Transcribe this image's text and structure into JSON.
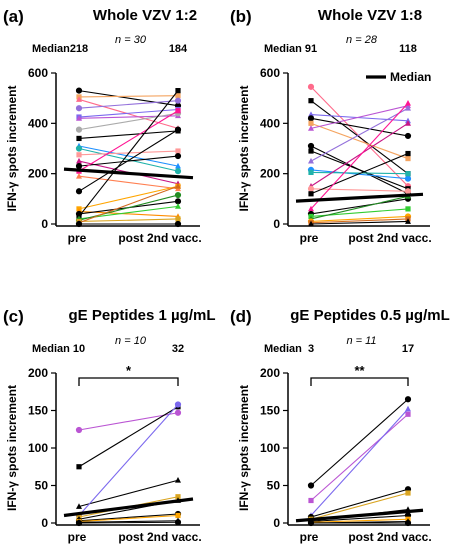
{
  "chart_data": [
    {
      "type": "line",
      "panel_label": "(a)",
      "title": "Whole VZV 1:2",
      "n_label": "n = 30",
      "median_label": "Median",
      "median_pre": "218",
      "median_post": "184",
      "ylabel": "IFN-γ spots increment",
      "categories": [
        "pre",
        "post 2nd vacc."
      ],
      "ylim": [
        0,
        600
      ],
      "yticks": [
        0,
        200,
        400,
        600
      ],
      "legend": "",
      "significance": "",
      "median_line": [
        218,
        184
      ],
      "series": [
        {
          "values": [
            530,
            470
          ],
          "color": "#000000"
        },
        {
          "values": [
            505,
            510
          ],
          "color": "#f4a460"
        },
        {
          "values": [
            495,
            380
          ],
          "color": "#ff6b8b"
        },
        {
          "values": [
            460,
            490
          ],
          "color": "#9370db"
        },
        {
          "values": [
            425,
            455
          ],
          "color": "#7b68ee"
        },
        {
          "values": [
            420,
            430
          ],
          "color": "#ba55d3"
        },
        {
          "values": [
            375,
            440
          ],
          "color": "#aaaaaa"
        },
        {
          "values": [
            340,
            370
          ],
          "color": "#000000"
        },
        {
          "values": [
            310,
            230
          ],
          "color": "#1e90ff"
        },
        {
          "values": [
            300,
            210
          ],
          "color": "#20b2aa"
        },
        {
          "values": [
            275,
            290
          ],
          "color": "#ff9999"
        },
        {
          "values": [
            250,
            160
          ],
          "color": "#c71585"
        },
        {
          "values": [
            230,
            270
          ],
          "color": "#000000"
        },
        {
          "values": [
            210,
            450
          ],
          "color": "#ff1493"
        },
        {
          "values": [
            190,
            140
          ],
          "color": "#ff7f50"
        },
        {
          "values": [
            130,
            375
          ],
          "color": "#000000"
        },
        {
          "values": [
            60,
            150
          ],
          "color": "#ffa500"
        },
        {
          "values": [
            50,
            30
          ],
          "color": "#ff8c00"
        },
        {
          "values": [
            40,
            90
          ],
          "color": "#000000"
        },
        {
          "values": [
            30,
            530
          ],
          "color": "#000000"
        },
        {
          "values": [
            20,
            70
          ],
          "color": "#32cd32"
        },
        {
          "values": [
            15,
            115
          ],
          "color": "#228b22"
        },
        {
          "values": [
            10,
            20
          ],
          "color": "#daa520"
        },
        {
          "values": [
            5,
            150
          ],
          "color": "#d2691e"
        },
        {
          "values": [
            0,
            0
          ],
          "color": "#000000"
        }
      ]
    },
    {
      "type": "line",
      "panel_label": "(b)",
      "title": "Whole VZV 1:8",
      "n_label": "n = 28",
      "median_label": "Median",
      "median_pre": "91",
      "median_post": "118",
      "ylabel": "IFN-γ spots increment",
      "categories": [
        "pre",
        "post 2nd vacc."
      ],
      "ylim": [
        0,
        600
      ],
      "yticks": [
        0,
        200,
        400,
        600
      ],
      "legend": "Median",
      "significance": "",
      "median_line": [
        91,
        118
      ],
      "series": [
        {
          "values": [
            545,
            150
          ],
          "color": "#ff6b8b"
        },
        {
          "values": [
            490,
            200
          ],
          "color": "#000000"
        },
        {
          "values": [
            435,
            410
          ],
          "color": "#7b68ee"
        },
        {
          "values": [
            420,
            350
          ],
          "color": "#000000"
        },
        {
          "values": [
            400,
            260
          ],
          "color": "#f4a460"
        },
        {
          "values": [
            380,
            470
          ],
          "color": "#ba55d3"
        },
        {
          "values": [
            310,
            120
          ],
          "color": "#000000"
        },
        {
          "values": [
            290,
            140
          ],
          "color": "#000000"
        },
        {
          "values": [
            250,
            460
          ],
          "color": "#9370db"
        },
        {
          "values": [
            215,
            180
          ],
          "color": "#1e90ff"
        },
        {
          "values": [
            205,
            200
          ],
          "color": "#20b2aa"
        },
        {
          "values": [
            150,
            400
          ],
          "color": "#c71585"
        },
        {
          "values": [
            140,
            130
          ],
          "color": "#ff9999"
        },
        {
          "values": [
            120,
            280
          ],
          "color": "#000000"
        },
        {
          "values": [
            60,
            480
          ],
          "color": "#ff1493"
        },
        {
          "values": [
            40,
            100
          ],
          "color": "#000000"
        },
        {
          "values": [
            30,
            60
          ],
          "color": "#32cd32"
        },
        {
          "values": [
            20,
            110
          ],
          "color": "#228b22"
        },
        {
          "values": [
            10,
            30
          ],
          "color": "#ffa500"
        },
        {
          "values": [
            5,
            20
          ],
          "color": "#d2691e"
        },
        {
          "values": [
            0,
            10
          ],
          "color": "#000000"
        }
      ]
    },
    {
      "type": "line",
      "panel_label": "(c)",
      "title": "gE Peptides 1 µg/mL",
      "n_label": "n = 10",
      "median_label": "Median",
      "median_pre": "10",
      "median_post": "32",
      "ylabel": "IFN-γ spots increment",
      "categories": [
        "pre",
        "post 2nd vacc."
      ],
      "ylim": [
        0,
        200
      ],
      "yticks": [
        0,
        50,
        100,
        150,
        200
      ],
      "legend": "",
      "significance": "*",
      "median_line": [
        10,
        32
      ],
      "series": [
        {
          "values": [
            124,
            147
          ],
          "color": "#ba55d3"
        },
        {
          "values": [
            75,
            155
          ],
          "color": "#000000"
        },
        {
          "values": [
            22,
            57
          ],
          "color": "#000000"
        },
        {
          "values": [
            10,
            158
          ],
          "color": "#7b68ee"
        },
        {
          "values": [
            8,
            35
          ],
          "color": "#daa520"
        },
        {
          "values": [
            5,
            30
          ],
          "color": "#000000"
        },
        {
          "values": [
            3,
            12
          ],
          "color": "#000000"
        },
        {
          "values": [
            2,
            10
          ],
          "color": "#ffa500"
        },
        {
          "values": [
            1,
            3
          ],
          "color": "#000000"
        },
        {
          "values": [
            0,
            1
          ],
          "color": "#000000"
        }
      ]
    },
    {
      "type": "line",
      "panel_label": "(d)",
      "title": "gE Peptides 0.5 µg/mL",
      "n_label": "n = 11",
      "median_label": "Median",
      "median_pre": "3",
      "median_post": "17",
      "ylabel": "IFN-γ spots increment",
      "categories": [
        "pre",
        "post 2nd vacc."
      ],
      "ylim": [
        0,
        200
      ],
      "yticks": [
        0,
        50,
        100,
        150,
        200
      ],
      "legend": "",
      "significance": "**",
      "median_line": [
        3,
        17
      ],
      "series": [
        {
          "values": [
            50,
            165
          ],
          "color": "#000000"
        },
        {
          "values": [
            30,
            145
          ],
          "color": "#ba55d3"
        },
        {
          "values": [
            10,
            152
          ],
          "color": "#7b68ee"
        },
        {
          "values": [
            8,
            45
          ],
          "color": "#000000"
        },
        {
          "values": [
            5,
            40
          ],
          "color": "#daa520"
        },
        {
          "values": [
            3,
            18
          ],
          "color": "#000000"
        },
        {
          "values": [
            2,
            10
          ],
          "color": "#000000"
        },
        {
          "values": [
            1,
            5
          ],
          "color": "#ffa500"
        },
        {
          "values": [
            0,
            2
          ],
          "color": "#000000"
        },
        {
          "values": [
            0,
            0
          ],
          "color": "#000000"
        }
      ]
    }
  ]
}
